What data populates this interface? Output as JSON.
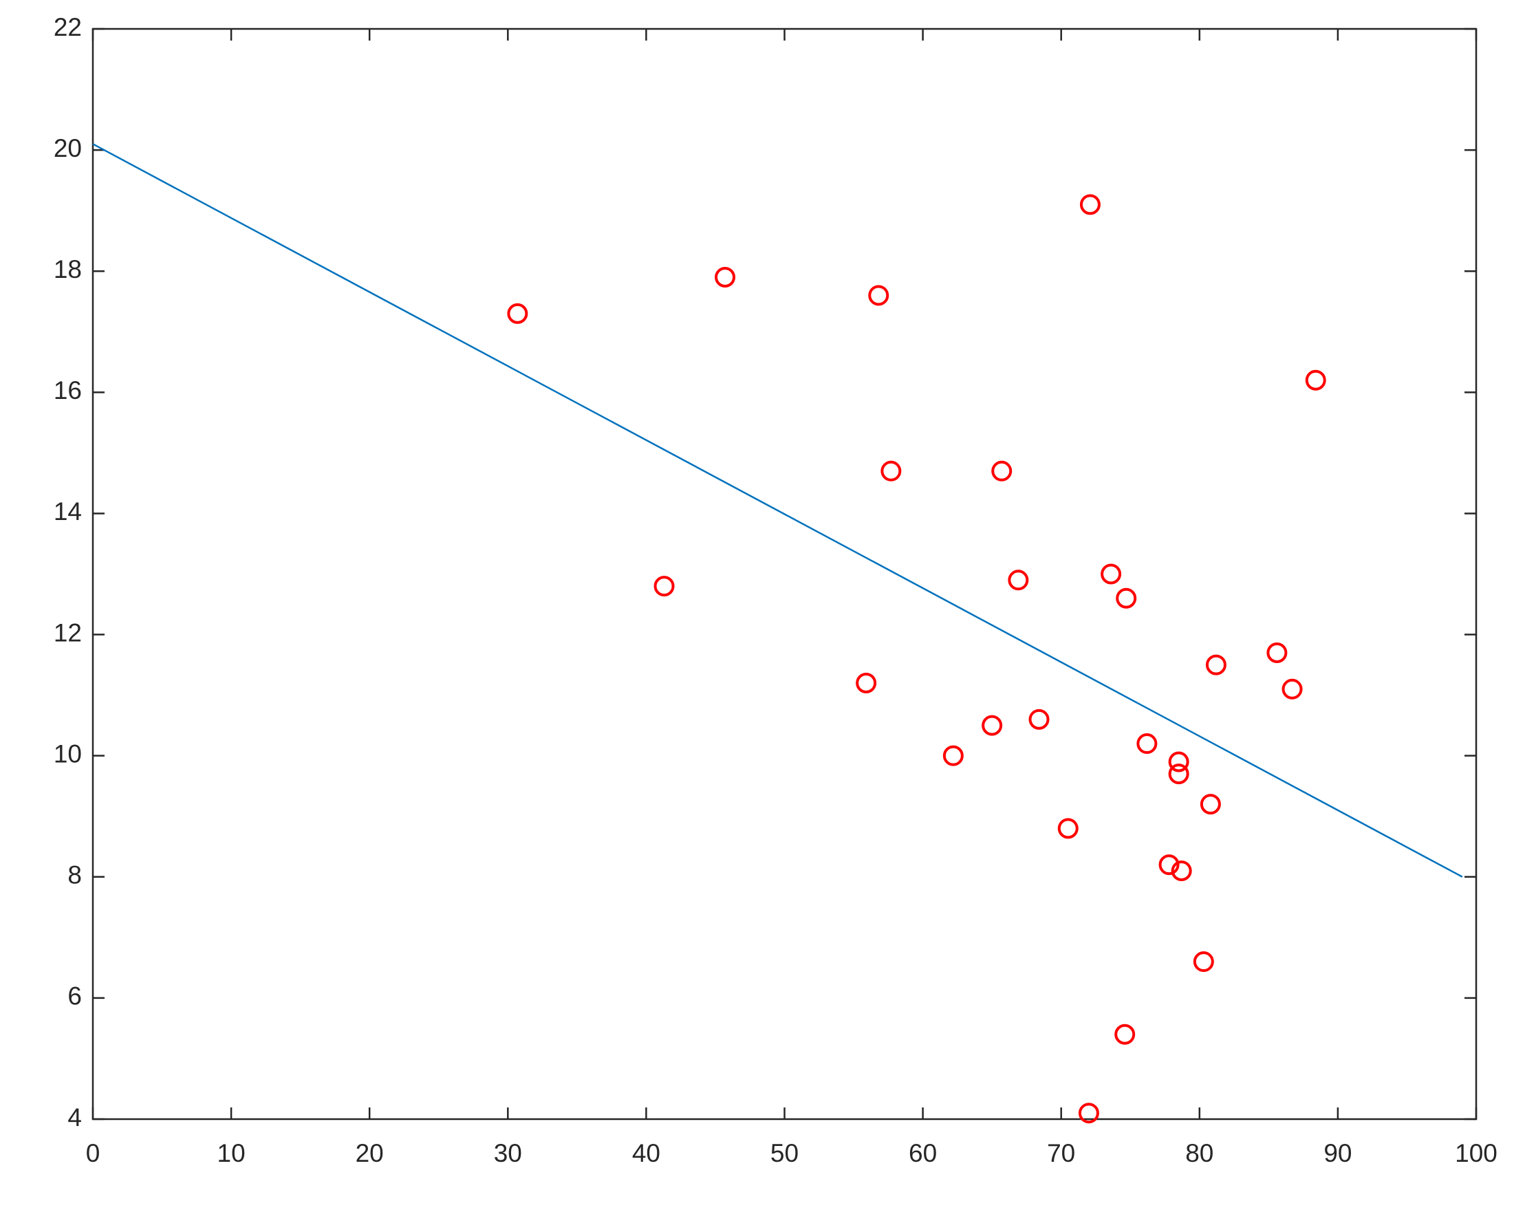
{
  "chart_data": {
    "type": "scatter",
    "xlim": [
      0,
      100
    ],
    "xticks": [
      0,
      10,
      20,
      30,
      40,
      50,
      60,
      70,
      80,
      90,
      100
    ],
    "ylim": [
      4,
      22
    ],
    "yticks": [
      4,
      6,
      8,
      10,
      12,
      14,
      16,
      18,
      20,
      22
    ],
    "grid": false,
    "box": true,
    "series": [
      {
        "type": "scatter",
        "color": "#ff0000",
        "x": [
          30.7,
          41.3,
          45.7,
          55.9,
          56.8,
          57.7,
          62.2,
          65.0,
          65.7,
          66.9,
          68.4,
          70.5,
          72.0,
          72.1,
          73.6,
          74.6,
          74.7,
          76.2,
          77.8,
          78.5,
          78.5,
          78.7,
          80.3,
          80.8,
          81.2,
          85.6,
          86.7,
          88.4
        ],
        "values": [
          17.3,
          12.8,
          17.9,
          11.2,
          17.6,
          14.7,
          10.0,
          10.5,
          14.7,
          12.9,
          10.6,
          8.8,
          4.1,
          19.1,
          13.0,
          5.4,
          12.6,
          10.2,
          8.2,
          9.9,
          9.7,
          8.1,
          6.6,
          9.2,
          11.5,
          11.7,
          11.1,
          16.2
        ]
      },
      {
        "type": "line",
        "color": "#0072bd",
        "x": [
          0,
          99
        ],
        "values": [
          20.1,
          8.0
        ]
      }
    ]
  }
}
